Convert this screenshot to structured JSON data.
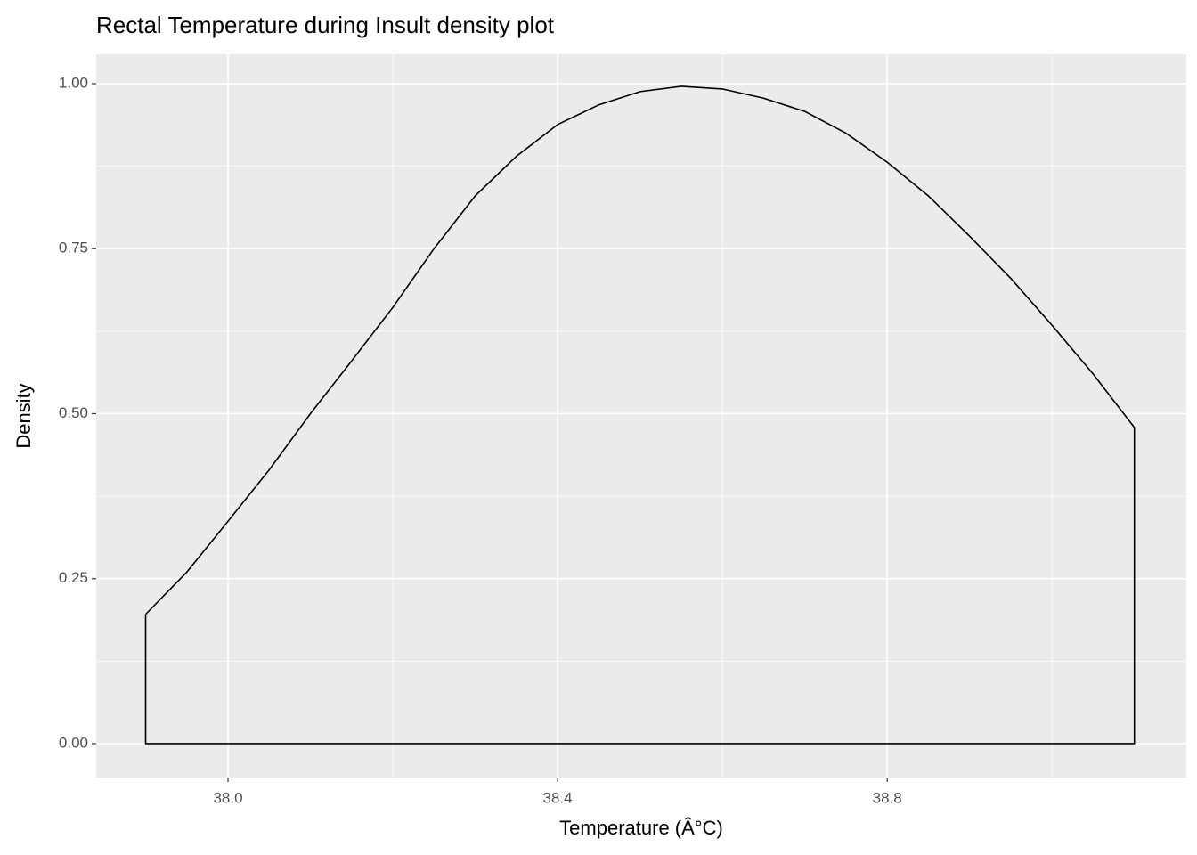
{
  "chart_data": {
    "type": "density",
    "title": "Rectal Temperature during Insult density plot",
    "x_label": "Temperature (Â°C)",
    "y_label": "Density",
    "x": [
      37.9,
      37.95,
      38.0,
      38.05,
      38.1,
      38.15,
      38.2,
      38.25,
      38.3,
      38.35,
      38.4,
      38.45,
      38.5,
      38.55,
      38.6,
      38.65,
      38.7,
      38.75,
      38.8,
      38.85,
      38.9,
      38.95,
      39.0,
      39.05,
      39.1
    ],
    "values": [
      0.196,
      0.26,
      0.337,
      0.415,
      0.5,
      0.58,
      0.661,
      0.75,
      0.83,
      0.89,
      0.938,
      0.968,
      0.988,
      0.996,
      0.992,
      0.978,
      0.958,
      0.925,
      0.881,
      0.83,
      0.769,
      0.705,
      0.634,
      0.56,
      0.479
    ],
    "color": "#000000",
    "xlim": [
      37.84,
      39.163
    ],
    "ylim": [
      -0.0513,
      1.0445
    ],
    "xticks": [
      {
        "value": 38.0,
        "label": "38.0"
      },
      38.4,
      38.8
    ],
    "yticks": [
      {
        "value": 0,
        "label": "0.00"
      },
      0.25,
      {
        "value": 0.5,
        "label": "0.50"
      },
      0.75,
      {
        "value": 1,
        "label": "1.00"
      }
    ],
    "minor_xgrid": [
      38.2,
      38.6,
      39.0
    ],
    "minor_ygrid": [
      0.125,
      0.375,
      0.625,
      0.875
    ],
    "grid": true
  }
}
